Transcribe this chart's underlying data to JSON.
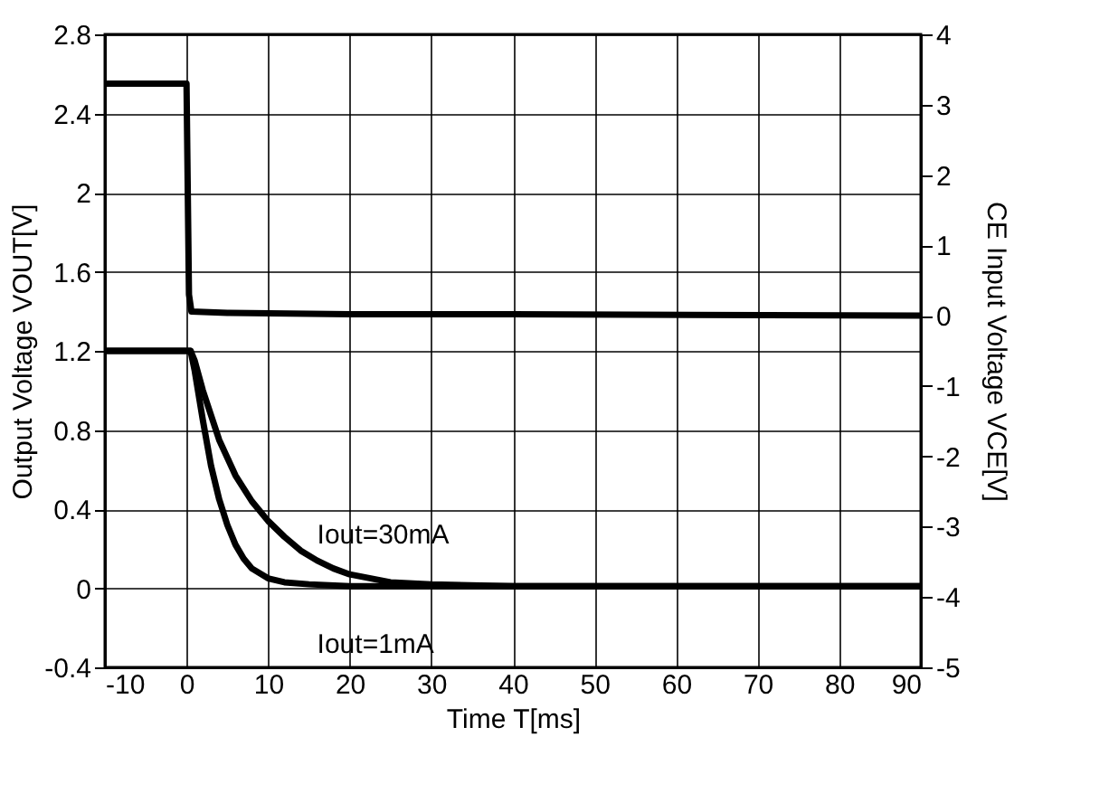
{
  "chart_data": {
    "type": "line",
    "xlabel": "Time T[ms]",
    "ylabel": "Output Voltage VOUT[V]",
    "y2label": "CE Input Voltage VCE[V]",
    "xlim": [
      -10,
      90
    ],
    "xticks": [
      -10,
      0,
      10,
      20,
      30,
      40,
      50,
      60,
      70,
      80,
      90
    ],
    "ylim": [
      -0.4,
      2.8
    ],
    "yticks": [
      -0.4,
      0,
      0.4,
      0.8,
      1.2,
      1.6,
      2,
      2.4,
      2.8
    ],
    "y2lim": [
      -5,
      4
    ],
    "y2ticks": [
      -5,
      -4,
      -3,
      -2,
      -1,
      0,
      1,
      2,
      3,
      4
    ],
    "grid": true,
    "marker": "none",
    "line_style": "solid",
    "series": [
      {
        "color": "#000000",
        "axis": "y2",
        "x": [
          -10,
          0,
          0.3,
          0.6,
          5,
          20,
          40,
          90
        ],
        "values": [
          3.3,
          3.3,
          0.3,
          0.06,
          0.04,
          0.02,
          0.02,
          0.0
        ]
      },
      {
        "name": "Iout=30mA",
        "color": "#000000",
        "x": [
          -10,
          0.5,
          1,
          2,
          4,
          6,
          8,
          10,
          12,
          14,
          16,
          18,
          20,
          25,
          30,
          40,
          90
        ],
        "values": [
          1.2,
          1.2,
          1.15,
          1.0,
          0.75,
          0.57,
          0.44,
          0.34,
          0.26,
          0.19,
          0.14,
          0.1,
          0.07,
          0.03,
          0.02,
          0.01,
          0.01
        ]
      },
      {
        "name": "Iout=1mA",
        "color": "#000000",
        "x": [
          -10,
          0.5,
          1,
          2,
          3,
          4,
          5,
          6,
          7,
          8,
          10,
          12,
          15,
          20,
          90
        ],
        "values": [
          1.2,
          1.2,
          1.1,
          0.85,
          0.62,
          0.45,
          0.32,
          0.22,
          0.15,
          0.1,
          0.05,
          0.03,
          0.02,
          0.01,
          0.01
        ]
      }
    ]
  }
}
